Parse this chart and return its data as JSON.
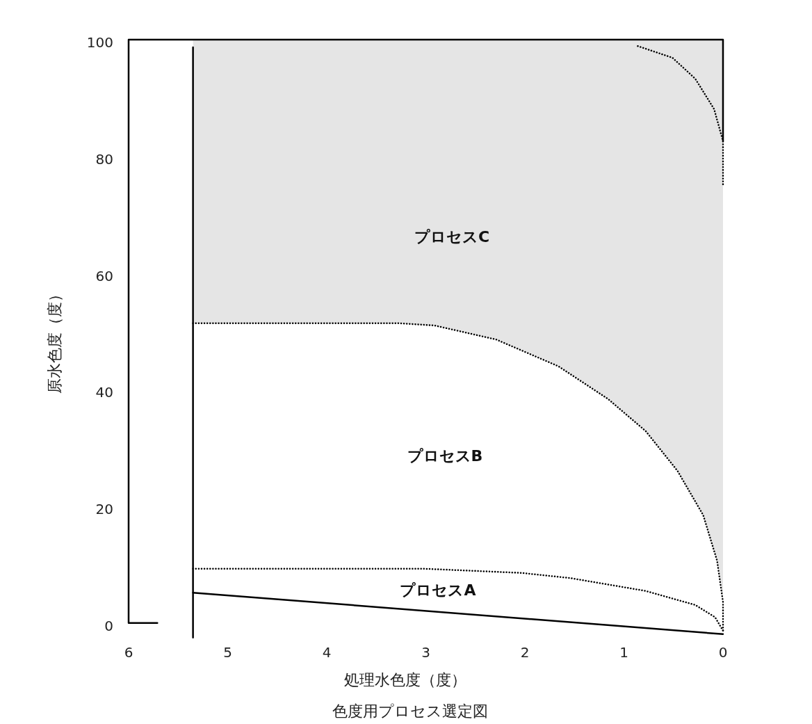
{
  "chart_data": {
    "type": "line",
    "title": "色度用プロセス選定図",
    "xlabel": "処理水色度（度）",
    "ylabel": "原水色度（度）",
    "xlim": [
      6,
      0
    ],
    "ylim": [
      -3,
      100
    ],
    "xticks": [
      6,
      5,
      4,
      3,
      2,
      1,
      0
    ],
    "yticks": [
      0,
      20,
      40,
      60,
      80,
      100
    ],
    "grid": false,
    "series": [
      {
        "color": "#000000",
        "line_style": "solid",
        "x": [
          5.71,
          6,
          6,
          0,
          0
        ],
        "values": [
          0,
          0,
          100,
          100,
          82.6
        ]
      },
      {
        "color": "#000000",
        "line_style": "solid",
        "x": [
          5.35,
          5.35
        ],
        "values": [
          -2.5,
          98.7
        ]
      },
      {
        "color": "#000000",
        "line_style": "solid",
        "x": [
          5.35,
          0
        ],
        "values": [
          5.2,
          -1.9
        ]
      },
      {
        "color": "#000000",
        "line_style": "dotted",
        "x": [
          5.35,
          3.0,
          2.04,
          1.54,
          0.78,
          0.28,
          0.08,
          0
        ],
        "values": [
          9.3,
          9.3,
          8.6,
          7.7,
          5.5,
          3.1,
          1.0,
          -1.3
        ]
      },
      {
        "color": "#000000",
        "line_style": "dotted",
        "x": [
          5.35,
          3.29,
          2.91,
          2.29,
          1.66,
          1.16,
          0.78,
          0.46,
          0.2,
          0.06,
          0,
          0
        ],
        "values": [
          51.4,
          51.4,
          51.0,
          48.6,
          44.0,
          38.4,
          32.9,
          26.1,
          18.5,
          10.7,
          3.6,
          -1.3
        ],
        "lower": [
          51.4,
          51.4,
          51.0,
          48.6,
          44.0,
          38.4,
          32.9,
          26.1,
          18.5,
          10.7,
          3.6,
          -1.3
        ],
        "upper": [
          100,
          100,
          100,
          100,
          100,
          100,
          100,
          100,
          100,
          100,
          100,
          100
        ]
      },
      {
        "color": "#000000",
        "line_style": "dotted",
        "x": [
          0.86,
          0.51,
          0.28,
          0.09,
          0,
          0
        ],
        "values": [
          98.9,
          96.9,
          93.3,
          88.1,
          82.6,
          75.2
        ]
      }
    ],
    "annotations": [
      "プロセスC",
      "プロセスB",
      "プロセスA"
    ]
  }
}
